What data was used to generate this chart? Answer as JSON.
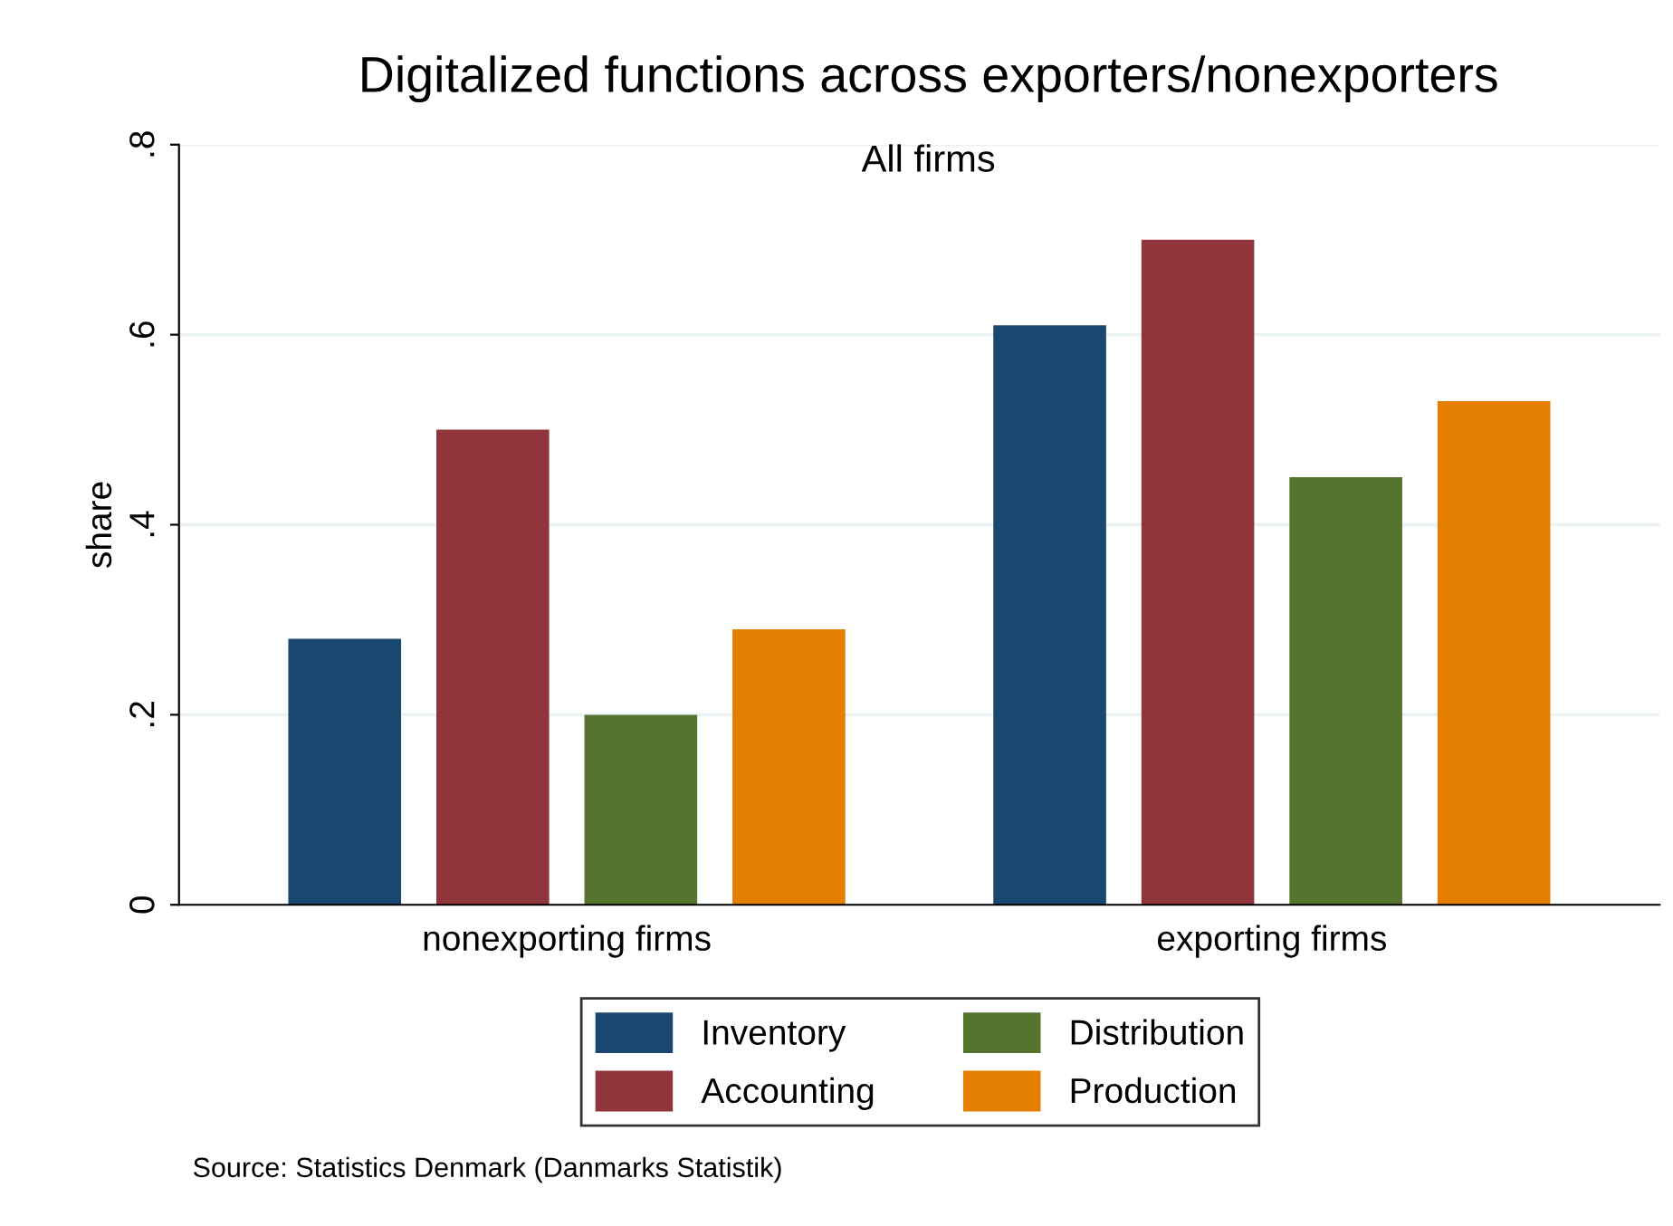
{
  "chart_data": {
    "type": "bar",
    "title": "Digitalized functions across exporters/nonexporters",
    "subtitle": "All firms",
    "ylabel": "share",
    "categories": [
      "nonexporting firms",
      "exporting firms"
    ],
    "series": [
      {
        "name": "Inventory",
        "color": "#1a476f",
        "values": [
          0.28,
          0.61
        ]
      },
      {
        "name": "Accounting",
        "color": "#90353b",
        "values": [
          0.5,
          0.7
        ]
      },
      {
        "name": "Distribution",
        "color": "#55752f",
        "values": [
          0.2,
          0.45
        ]
      },
      {
        "name": "Production",
        "color": "#e37e00",
        "values": [
          0.29,
          0.53
        ]
      }
    ],
    "ylim": [
      0,
      0.8
    ],
    "yticks": [
      {
        "value": 0,
        "label": "0"
      },
      {
        "value": 0.2,
        "label": ".2"
      },
      {
        "value": 0.4,
        "label": ".4"
      },
      {
        "value": 0.6,
        "label": ".6"
      },
      {
        "value": 0.8,
        "label": ".8"
      }
    ],
    "grid": "y",
    "legend": "bottom",
    "annotations": [
      "Source: Statistics Denmark (Danmarks Statistik)"
    ]
  }
}
